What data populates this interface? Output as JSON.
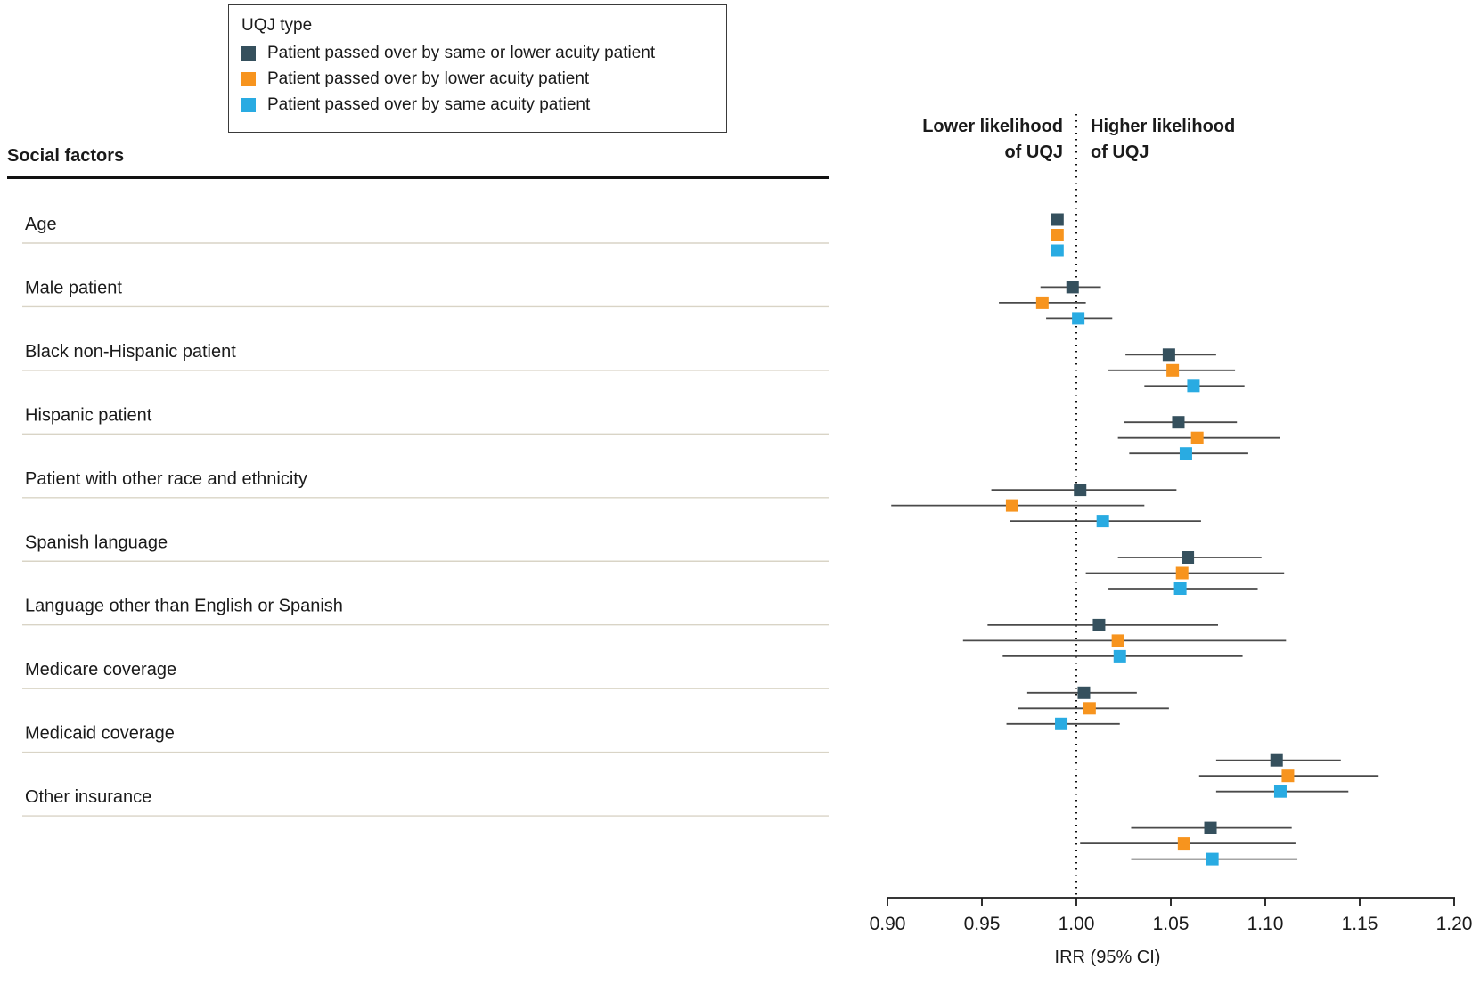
{
  "legend": {
    "title": "UQJ type",
    "items": [
      {
        "label": "Patient passed over by same or lower acuity patient",
        "color": "#35505d"
      },
      {
        "label": "Patient passed over by lower acuity patient",
        "color": "#f7941e"
      },
      {
        "label": "Patient passed over by same acuity patient",
        "color": "#29abe2"
      }
    ]
  },
  "left_header": "Social factors",
  "annotations": {
    "lower_line1": "Lower likelihood",
    "lower_line2": "of UQJ",
    "higher_line1": "Higher likelihood",
    "higher_line2": "of UQJ"
  },
  "style_colors": {
    "text": "#1a1a1a",
    "axis": "#1a1a1a",
    "ci_line": "#4a4a4a",
    "row_separator": "#d9d4c6",
    "reference_line": "#111111"
  },
  "chart_data": {
    "type": "forest",
    "xlabel": "IRR (95% CI)",
    "xlim": [
      0.9,
      1.2
    ],
    "x_ticks": [
      0.9,
      0.95,
      1.0,
      1.05,
      1.1,
      1.15,
      1.2
    ],
    "x_tick_labels": [
      "0.90",
      "0.95",
      "1.00",
      "1.05",
      "1.10",
      "1.15",
      "1.20"
    ],
    "reference_line": 1.0,
    "grid": false,
    "legend_position": "top-left",
    "series": [
      {
        "name": "Patient passed over by same or lower acuity patient",
        "color": "#35505d"
      },
      {
        "name": "Patient passed over by lower acuity patient",
        "color": "#f7941e"
      },
      {
        "name": "Patient passed over by same acuity patient",
        "color": "#29abe2"
      }
    ],
    "rows": [
      {
        "label": "Age",
        "values": [
          {
            "irr": 0.99,
            "lo": 0.99,
            "hi": 0.99
          },
          {
            "irr": 0.99,
            "lo": 0.99,
            "hi": 0.99
          },
          {
            "irr": 0.99,
            "lo": 0.99,
            "hi": 0.99
          }
        ]
      },
      {
        "label": "Male patient",
        "values": [
          {
            "irr": 0.998,
            "lo": 0.981,
            "hi": 1.013
          },
          {
            "irr": 0.982,
            "lo": 0.959,
            "hi": 1.005
          },
          {
            "irr": 1.001,
            "lo": 0.984,
            "hi": 1.019
          }
        ]
      },
      {
        "label": "Black non-Hispanic patient",
        "values": [
          {
            "irr": 1.049,
            "lo": 1.026,
            "hi": 1.074
          },
          {
            "irr": 1.051,
            "lo": 1.017,
            "hi": 1.084
          },
          {
            "irr": 1.062,
            "lo": 1.036,
            "hi": 1.089
          }
        ]
      },
      {
        "label": "Hispanic patient",
        "values": [
          {
            "irr": 1.054,
            "lo": 1.025,
            "hi": 1.085
          },
          {
            "irr": 1.064,
            "lo": 1.022,
            "hi": 1.108
          },
          {
            "irr": 1.058,
            "lo": 1.028,
            "hi": 1.091
          }
        ]
      },
      {
        "label": "Patient with other race and ethnicity",
        "values": [
          {
            "irr": 1.002,
            "lo": 0.955,
            "hi": 1.053
          },
          {
            "irr": 0.966,
            "lo": 0.902,
            "hi": 1.036
          },
          {
            "irr": 1.014,
            "lo": 0.965,
            "hi": 1.066
          }
        ]
      },
      {
        "label": "Spanish language",
        "values": [
          {
            "irr": 1.059,
            "lo": 1.022,
            "hi": 1.098
          },
          {
            "irr": 1.056,
            "lo": 1.005,
            "hi": 1.11
          },
          {
            "irr": 1.055,
            "lo": 1.017,
            "hi": 1.096
          }
        ]
      },
      {
        "label": "Language other than English or Spanish",
        "values": [
          {
            "irr": 1.012,
            "lo": 0.953,
            "hi": 1.075
          },
          {
            "irr": 1.022,
            "lo": 0.94,
            "hi": 1.111
          },
          {
            "irr": 1.023,
            "lo": 0.961,
            "hi": 1.088
          }
        ]
      },
      {
        "label": "Medicare coverage",
        "values": [
          {
            "irr": 1.004,
            "lo": 0.974,
            "hi": 1.032
          },
          {
            "irr": 1.007,
            "lo": 0.969,
            "hi": 1.049
          },
          {
            "irr": 0.992,
            "lo": 0.963,
            "hi": 1.023
          }
        ]
      },
      {
        "label": "Medicaid coverage",
        "values": [
          {
            "irr": 1.106,
            "lo": 1.074,
            "hi": 1.14
          },
          {
            "irr": 1.112,
            "lo": 1.065,
            "hi": 1.16
          },
          {
            "irr": 1.108,
            "lo": 1.074,
            "hi": 1.144
          }
        ]
      },
      {
        "label": "Other insurance",
        "values": [
          {
            "irr": 1.071,
            "lo": 1.029,
            "hi": 1.114
          },
          {
            "irr": 1.057,
            "lo": 1.002,
            "hi": 1.116
          },
          {
            "irr": 1.072,
            "lo": 1.029,
            "hi": 1.117
          }
        ]
      }
    ]
  }
}
